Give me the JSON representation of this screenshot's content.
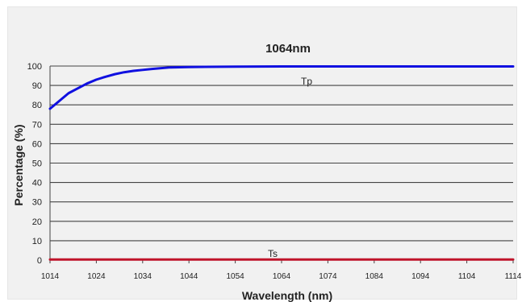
{
  "chart_data": {
    "type": "line",
    "title": "1064nm",
    "xlabel": "Wavelength (nm)",
    "ylabel": "Percentage (%)",
    "xlim": [
      1014,
      1114
    ],
    "ylim": [
      0,
      100
    ],
    "x_ticks": [
      "1014",
      "1024",
      "1034",
      "1044",
      "1054",
      "1064",
      "1074",
      "1084",
      "1094",
      "1104",
      "1114"
    ],
    "y_ticks": [
      "0",
      "10",
      "20",
      "30",
      "40",
      "50",
      "60",
      "70",
      "80",
      "90",
      "100"
    ],
    "grid": true,
    "series": [
      {
        "name": "Tp",
        "color": "#1010e0",
        "x": [
          1014,
          1016,
          1018,
          1020,
          1022,
          1024,
          1026,
          1028,
          1030,
          1032,
          1034,
          1036,
          1038,
          1040,
          1044,
          1054,
          1064,
          1074,
          1084,
          1094,
          1104,
          1114
        ],
        "y": [
          78,
          82,
          86,
          88.5,
          91,
          93,
          94.5,
          95.8,
          96.8,
          97.5,
          98,
          98.5,
          98.9,
          99.3,
          99.5,
          99.7,
          99.8,
          99.8,
          99.8,
          99.8,
          99.8,
          99.8
        ]
      },
      {
        "name": "Ts",
        "color": "#c0142a",
        "x": [
          1014,
          1024,
          1034,
          1044,
          1054,
          1064,
          1074,
          1084,
          1094,
          1104,
          1114
        ],
        "y": [
          0.3,
          0.3,
          0.3,
          0.3,
          0.3,
          0.3,
          0.3,
          0.3,
          0.3,
          0.3,
          0.3
        ]
      }
    ]
  }
}
